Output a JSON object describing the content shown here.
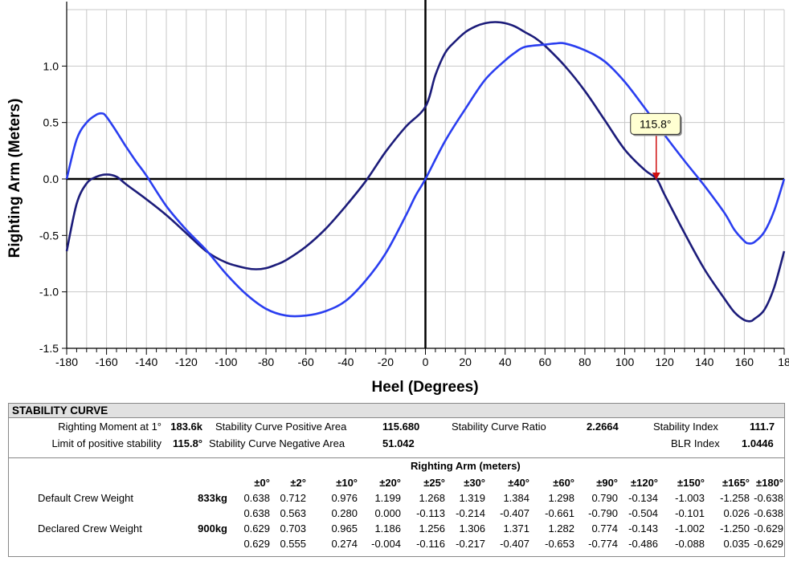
{
  "chart_data": {
    "type": "line",
    "xlabel": "Heel (Degrees)",
    "ylabel": "Righting Arm (Meters)",
    "xlim": [
      -180,
      180
    ],
    "ylim": [
      -1.5,
      1.5
    ],
    "xticks": [
      "-180",
      "-160",
      "-140",
      "-120",
      "-100",
      "-80",
      "-60",
      "-40",
      "-20",
      "0",
      "20",
      "40",
      "60",
      "80",
      "100",
      "120",
      "140",
      "160",
      "18"
    ],
    "yticks": [
      "-1.5",
      "-1.0",
      "-0.5",
      "0.0",
      "0.5",
      "1.0"
    ],
    "grid": true,
    "series": [
      {
        "color": "#1c1c7a",
        "x": [
          -180,
          -175,
          -170,
          -165,
          -160,
          -155,
          -150,
          -140,
          -130,
          -120,
          -110,
          -100,
          -90,
          -85,
          -80,
          -75,
          -70,
          -60,
          -50,
          -40,
          -30,
          -20,
          -10,
          0,
          5,
          10,
          15,
          20,
          25,
          30,
          35,
          40,
          45,
          50,
          55,
          60,
          70,
          80,
          90,
          100,
          110,
          116,
          120,
          130,
          140,
          150,
          155,
          160,
          163,
          165,
          170,
          175,
          180
        ],
        "y": [
          -0.64,
          -0.22,
          -0.04,
          0.02,
          0.04,
          0.02,
          -0.05,
          -0.18,
          -0.32,
          -0.48,
          -0.64,
          -0.74,
          -0.79,
          -0.8,
          -0.79,
          -0.76,
          -0.72,
          -0.6,
          -0.44,
          -0.24,
          -0.02,
          0.24,
          0.46,
          0.64,
          0.92,
          1.12,
          1.22,
          1.3,
          1.35,
          1.38,
          1.39,
          1.38,
          1.35,
          1.3,
          1.25,
          1.18,
          1.0,
          0.78,
          0.52,
          0.26,
          0.08,
          0.0,
          -0.14,
          -0.48,
          -0.8,
          -1.06,
          -1.18,
          -1.25,
          -1.26,
          -1.24,
          -1.16,
          -0.96,
          -0.64
        ]
      },
      {
        "color": "#2a3ef0",
        "x": [
          -180,
          -175,
          -170,
          -165,
          -162,
          -160,
          -155,
          -150,
          -145,
          -140,
          -130,
          -120,
          -110,
          -100,
          -90,
          -80,
          -70,
          -60,
          -50,
          -40,
          -30,
          -20,
          -10,
          -5,
          0,
          10,
          20,
          30,
          40,
          45,
          50,
          60,
          65,
          70,
          80,
          90,
          100,
          110,
          120,
          130,
          140,
          150,
          155,
          160,
          162,
          165,
          170,
          175,
          180
        ],
        "y": [
          0.0,
          0.35,
          0.5,
          0.57,
          0.58,
          0.55,
          0.42,
          0.28,
          0.15,
          0.03,
          -0.24,
          -0.45,
          -0.63,
          -0.84,
          -1.02,
          -1.15,
          -1.21,
          -1.21,
          -1.17,
          -1.08,
          -0.9,
          -0.66,
          -0.33,
          -0.15,
          0.0,
          0.34,
          0.62,
          0.88,
          1.05,
          1.12,
          1.17,
          1.19,
          1.2,
          1.2,
          1.14,
          1.04,
          0.86,
          0.63,
          0.39,
          0.16,
          -0.06,
          -0.3,
          -0.45,
          -0.55,
          -0.57,
          -0.56,
          -0.47,
          -0.28,
          0.0
        ]
      }
    ],
    "annotation": {
      "label": "115.8°",
      "x": 115.8,
      "y": 0.0
    }
  },
  "panel": {
    "title": "STABILITY CURVE",
    "righting_moment_label": "Righting Moment at 1°",
    "righting_moment_value": "183.6k",
    "limit_label": "Limit of positive stability",
    "limit_value": "115.8°",
    "pos_area_label": "Stability Curve Positive Area",
    "pos_area_value": "115.680",
    "neg_area_label": "Stability Curve Negative Area",
    "neg_area_value": "51.042",
    "ratio_label": "Stability Curve Ratio",
    "ratio_value": "2.2664",
    "index_label": "Stability Index",
    "index_value": "111.7",
    "blr_label": "BLR Index",
    "blr_value": "1.0446",
    "righting_arm_title": "Righting Arm (meters)",
    "angles": [
      "±0°",
      "±2°",
      "±10°",
      "±20°",
      "±25°",
      "±30°",
      "±40°",
      "±60°",
      "±90°",
      "±120°",
      "±150°",
      "±165°",
      "±180°"
    ],
    "rows": [
      {
        "label": "Default Crew  Weight",
        "weight": "833kg",
        "values": [
          "0.638",
          "0.712",
          "0.976",
          "1.199",
          "1.268",
          "1.319",
          "1.384",
          "1.298",
          "0.790",
          "-0.134",
          "-1.003",
          "-1.258",
          "-0.638"
        ]
      },
      {
        "label": "",
        "weight": "",
        "values": [
          "0.638",
          "0.563",
          "0.280",
          "0.000",
          "-0.113",
          "-0.214",
          "-0.407",
          "-0.661",
          "-0.790",
          "-0.504",
          "-0.101",
          "0.026",
          "-0.638"
        ]
      },
      {
        "label": "Declared Crew  Weight",
        "weight": "900kg",
        "values": [
          "0.629",
          "0.703",
          "0.965",
          "1.186",
          "1.256",
          "1.306",
          "1.371",
          "1.282",
          "0.774",
          "-0.143",
          "-1.002",
          "-1.250",
          "-0.629"
        ]
      },
      {
        "label": "",
        "weight": "",
        "values": [
          "0.629",
          "0.555",
          "0.274",
          "-0.004",
          "-0.116",
          "-0.217",
          "-0.407",
          "-0.653",
          "-0.774",
          "-0.486",
          "-0.088",
          "0.035",
          "-0.629"
        ]
      }
    ]
  }
}
